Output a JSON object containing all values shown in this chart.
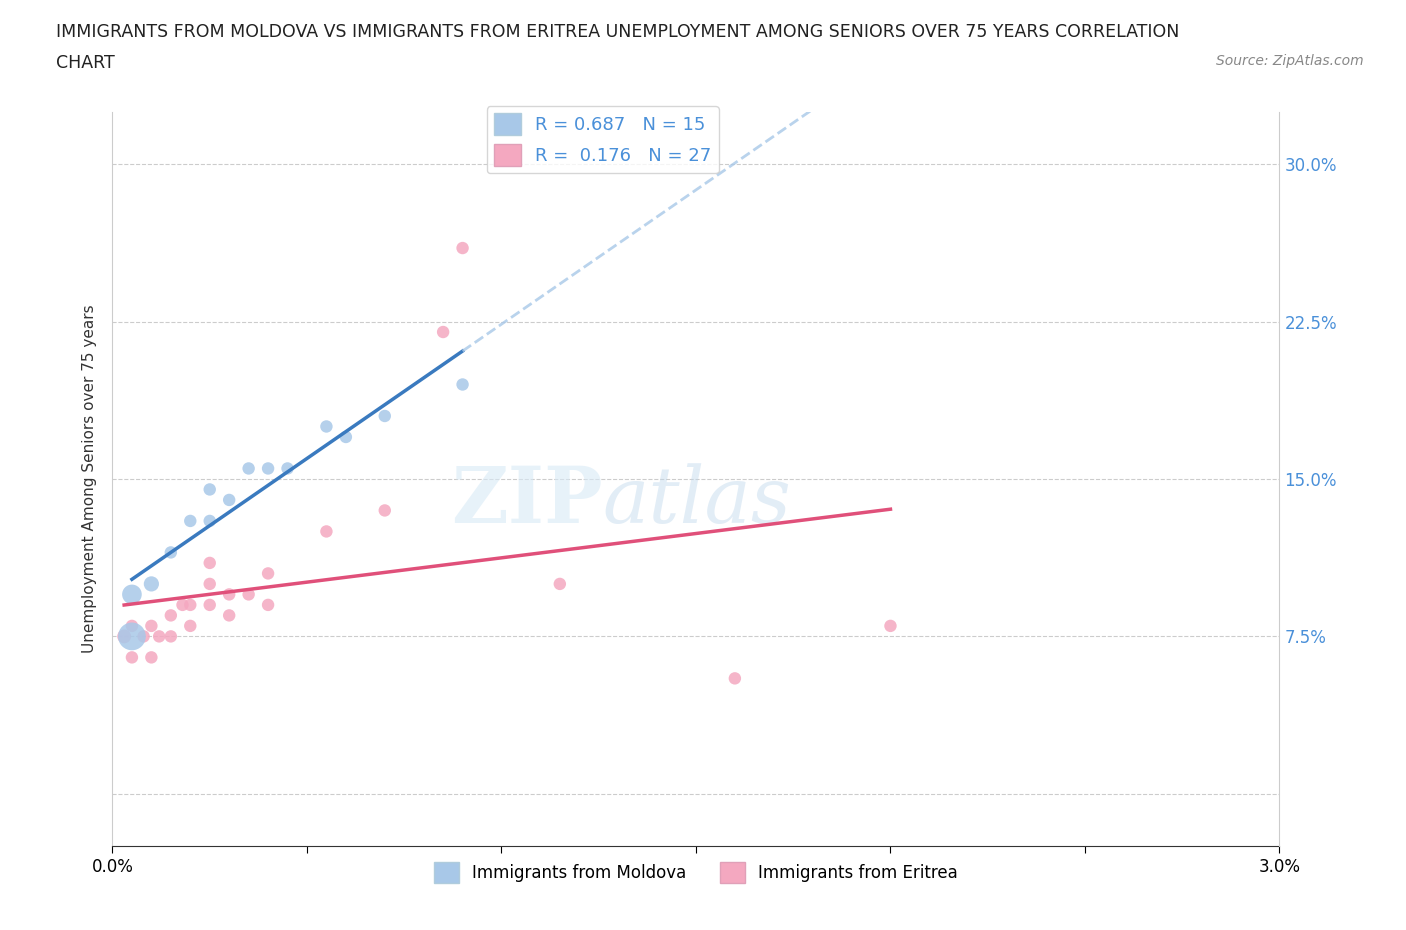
{
  "title_line1": "IMMIGRANTS FROM MOLDOVA VS IMMIGRANTS FROM ERITREA UNEMPLOYMENT AMONG SENIORS OVER 75 YEARS CORRELATION",
  "title_line2": "CHART",
  "source_text": "Source: ZipAtlas.com",
  "ylabel": "Unemployment Among Seniors over 75 years",
  "yticks": [
    0.0,
    0.075,
    0.15,
    0.225,
    0.3
  ],
  "ytick_labels": [
    "",
    "7.5%",
    "15.0%",
    "22.5%",
    "30.0%"
  ],
  "xticks": [
    0.0,
    0.005,
    0.01,
    0.015,
    0.02,
    0.025,
    0.03
  ],
  "xmin": 0.0,
  "xmax": 0.03,
  "ymin": -0.025,
  "ymax": 0.325,
  "moldova_R": 0.687,
  "moldova_N": 15,
  "eritrea_R": 0.176,
  "eritrea_N": 27,
  "moldova_color": "#a8c8e8",
  "eritrea_color": "#f4a8c0",
  "moldova_line_color": "#3a7abf",
  "eritrea_line_color": "#e0507a",
  "trend_extension_color": "#a8c8e8",
  "moldova_x": [
    0.0005,
    0.0005,
    0.001,
    0.0015,
    0.002,
    0.0025,
    0.0025,
    0.003,
    0.0035,
    0.004,
    0.0045,
    0.0055,
    0.006,
    0.007,
    0.009
  ],
  "moldova_y": [
    0.075,
    0.095,
    0.1,
    0.115,
    0.13,
    0.13,
    0.145,
    0.14,
    0.155,
    0.155,
    0.155,
    0.175,
    0.17,
    0.18,
    0.195
  ],
  "moldova_sizes": [
    400,
    200,
    120,
    80,
    80,
    80,
    80,
    80,
    80,
    80,
    80,
    80,
    80,
    80,
    80
  ],
  "eritrea_x": [
    0.0003,
    0.0005,
    0.0005,
    0.0008,
    0.001,
    0.001,
    0.0012,
    0.0015,
    0.0015,
    0.0018,
    0.002,
    0.002,
    0.0025,
    0.0025,
    0.0025,
    0.003,
    0.003,
    0.0035,
    0.004,
    0.004,
    0.0055,
    0.007,
    0.0085,
    0.009,
    0.0115,
    0.016,
    0.02
  ],
  "eritrea_y": [
    0.075,
    0.065,
    0.08,
    0.075,
    0.065,
    0.08,
    0.075,
    0.075,
    0.085,
    0.09,
    0.08,
    0.09,
    0.09,
    0.1,
    0.11,
    0.085,
    0.095,
    0.095,
    0.09,
    0.105,
    0.125,
    0.135,
    0.22,
    0.26,
    0.1,
    0.055,
    0.08
  ],
  "eritrea_sizes": [
    100,
    80,
    80,
    80,
    80,
    80,
    80,
    80,
    80,
    80,
    80,
    80,
    80,
    80,
    80,
    80,
    80,
    80,
    80,
    80,
    80,
    80,
    80,
    80,
    80,
    80,
    80
  ]
}
